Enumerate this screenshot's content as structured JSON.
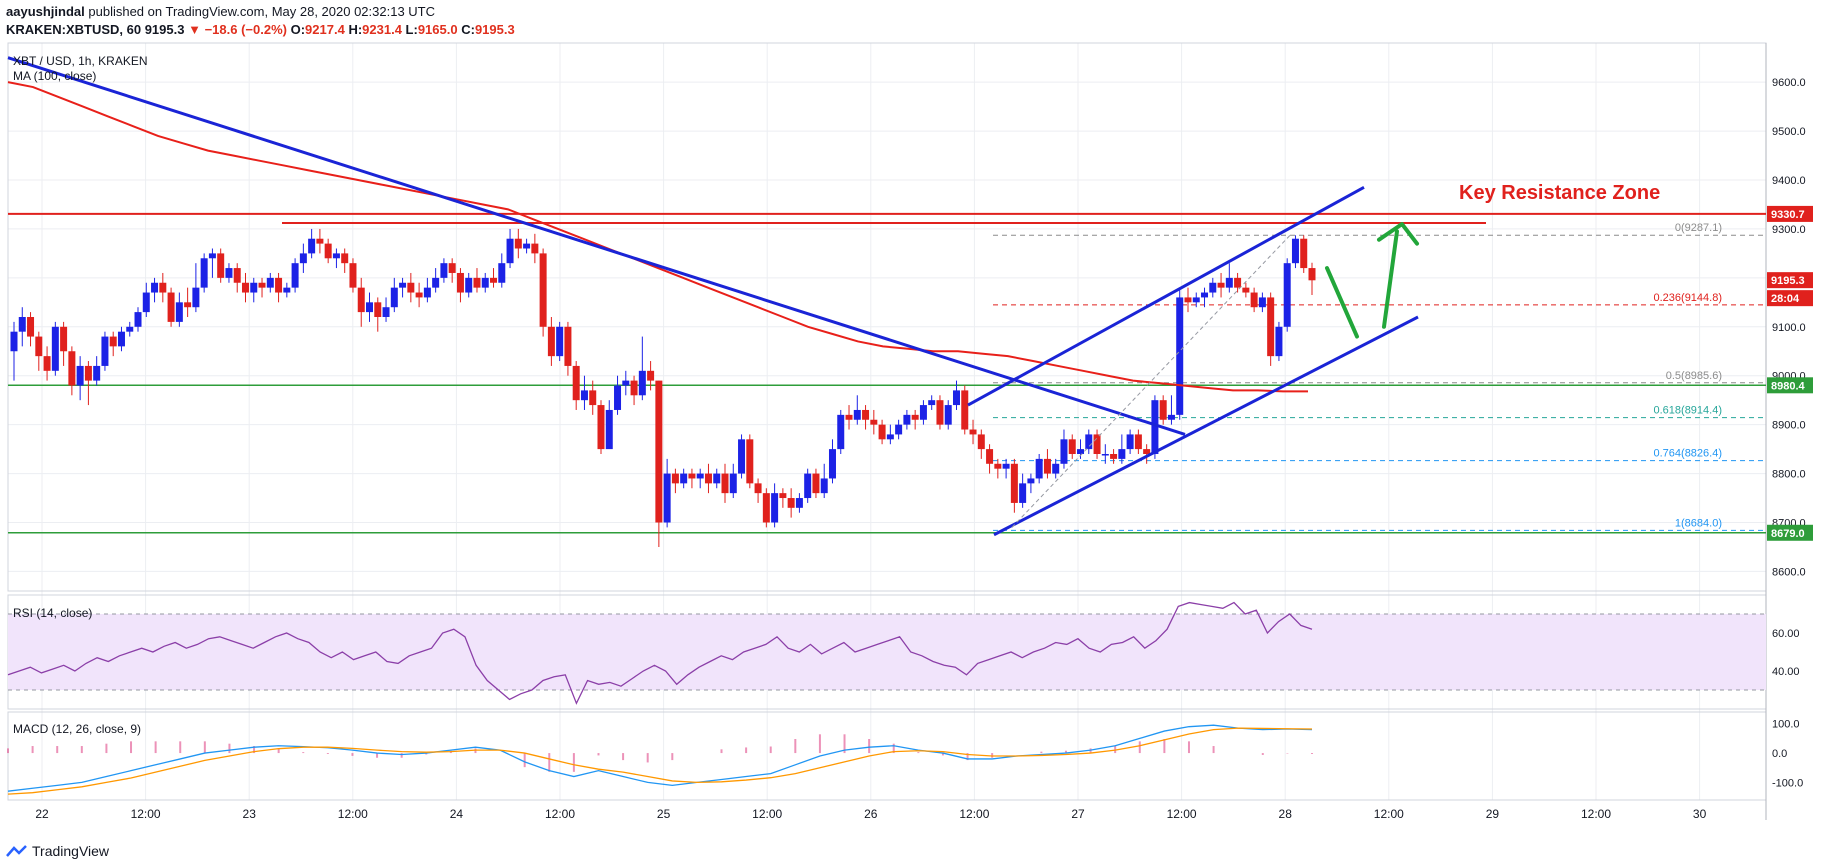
{
  "header": {
    "author": "aayushjindal",
    "published": "published on TradingView.com, May 28, 2020 02:32:13 UTC",
    "symbol": "KRAKEN:XBTUSD, 60",
    "price": "9195.3",
    "change": "▼ −18.6 (−0.2%)",
    "o_label": "O:",
    "o": "9217.4",
    "h_label": "H:",
    "h": "9231.4",
    "l_label": "L:",
    "l": "9165.0",
    "c_label": "C:",
    "c": "9195.3"
  },
  "legend": {
    "title": "XBT / USD, 1h, KRAKEN",
    "ma": "MA (100, close)",
    "rsi": "RSI (14, close)",
    "macd": "MACD (12, 26, close, 9)"
  },
  "footer": {
    "brand": "TradingView"
  },
  "colors": {
    "up": "#1c22e6",
    "down": "#e0211d",
    "ma": "#e8201a",
    "trend": "#1a24d6",
    "support": "#2e9d3a",
    "resistance": "#e0211d",
    "rsi": "#8b3fa8",
    "rsi_band": "#f1e4fb",
    "macd": "#2196f3",
    "signal": "#ff9800",
    "hist": "#e04a8a",
    "arrow": "#22a63a"
  },
  "annotation": "Key Resistance Zone",
  "chart_data": {
    "type": "candlestick",
    "title": "XBT / USD, 1h, KRAKEN",
    "ylim": [
      8560,
      9680
    ],
    "y_ticks": [
      "9600.0",
      "9500.0",
      "9400.0",
      "9300.0",
      "9200.0",
      "9100.0",
      "9000.0",
      "8900.0",
      "8800.0",
      "8700.0",
      "8600.0"
    ],
    "x_ticks": [
      "22",
      "12:00",
      "23",
      "12:00",
      "24",
      "12:00",
      "25",
      "12:00",
      "26",
      "12:00",
      "27",
      "12:00",
      "28",
      "12:00",
      "29",
      "12:00",
      "30"
    ],
    "price_labels": [
      {
        "text": "9330.7",
        "value": 9330.7,
        "color": "#e0211d"
      },
      {
        "text": "9195.3",
        "value": 9195.3,
        "color": "#e0211d"
      },
      {
        "text": "28:04",
        "value": 9150,
        "color": "#e0211d"
      },
      {
        "text": "8980.4",
        "value": 8980.4,
        "color": "#2e9d3a"
      },
      {
        "text": "8679.0",
        "value": 8679.0,
        "color": "#2e9d3a"
      }
    ],
    "horizontal_levels": [
      {
        "name": "resistance",
        "value": 9330.7
      },
      {
        "name": "resistance-2",
        "value": 9312
      },
      {
        "name": "support-upper",
        "value": 8980.4
      },
      {
        "name": "support-lower",
        "value": 8679.0
      }
    ],
    "fibonacci": [
      {
        "label": "0(9287.1)",
        "value": 9287.1,
        "color": "#8c8c8c"
      },
      {
        "label": "0.236(9144.8)",
        "value": 9144.8,
        "color": "#e0211d"
      },
      {
        "label": "0.5(8985.6)",
        "value": 8985.6,
        "color": "#8c8c8c"
      },
      {
        "label": "0.618(8914.4)",
        "value": 8914.4,
        "color": "#26a69a"
      },
      {
        "label": "0.764(8826.4)",
        "value": 8826.4,
        "color": "#2196f3"
      },
      {
        "label": "1(8684.0)",
        "value": 8684.0,
        "color": "#2196f3"
      }
    ],
    "candles": [
      [
        9050,
        9090,
        8990,
        9110
      ],
      [
        9090,
        9120,
        9060,
        9140
      ],
      [
        9120,
        9080,
        9060,
        9130
      ],
      [
        9080,
        9040,
        9010,
        9090
      ],
      [
        9040,
        9010,
        8990,
        9060
      ],
      [
        9010,
        9100,
        9000,
        9110
      ],
      [
        9100,
        9050,
        9020,
        9110
      ],
      [
        9050,
        8980,
        8960,
        9060
      ],
      [
        8980,
        9020,
        8950,
        9040
      ],
      [
        9020,
        8990,
        8940,
        9030
      ],
      [
        8990,
        9020,
        8980,
        9040
      ],
      [
        9020,
        9080,
        9010,
        9090
      ],
      [
        9080,
        9060,
        9040,
        9090
      ],
      [
        9060,
        9090,
        9050,
        9100
      ],
      [
        9090,
        9100,
        9080,
        9110
      ],
      [
        9100,
        9130,
        9090,
        9140
      ],
      [
        9130,
        9170,
        9120,
        9190
      ],
      [
        9170,
        9190,
        9150,
        9200
      ],
      [
        9190,
        9170,
        9150,
        9210
      ],
      [
        9170,
        9110,
        9100,
        9180
      ],
      [
        9110,
        9150,
        9100,
        9170
      ],
      [
        9150,
        9140,
        9120,
        9180
      ],
      [
        9140,
        9180,
        9130,
        9230
      ],
      [
        9180,
        9240,
        9170,
        9250
      ],
      [
        9240,
        9250,
        9200,
        9260
      ],
      [
        9250,
        9200,
        9190,
        9260
      ],
      [
        9200,
        9220,
        9190,
        9230
      ],
      [
        9220,
        9190,
        9170,
        9230
      ],
      [
        9190,
        9170,
        9150,
        9210
      ],
      [
        9170,
        9190,
        9150,
        9200
      ],
      [
        9190,
        9180,
        9160,
        9200
      ],
      [
        9180,
        9200,
        9170,
        9210
      ],
      [
        9200,
        9170,
        9150,
        9210
      ],
      [
        9170,
        9180,
        9160,
        9190
      ],
      [
        9180,
        9230,
        9170,
        9240
      ],
      [
        9230,
        9250,
        9210,
        9270
      ],
      [
        9250,
        9280,
        9240,
        9300
      ],
      [
        9280,
        9270,
        9250,
        9300
      ],
      [
        9270,
        9240,
        9230,
        9280
      ],
      [
        9240,
        9250,
        9220,
        9260
      ],
      [
        9250,
        9230,
        9210,
        9260
      ],
      [
        9230,
        9180,
        9170,
        9240
      ],
      [
        9180,
        9130,
        9100,
        9200
      ],
      [
        9130,
        9150,
        9110,
        9170
      ],
      [
        9150,
        9120,
        9090,
        9160
      ],
      [
        9120,
        9140,
        9110,
        9160
      ],
      [
        9140,
        9180,
        9130,
        9200
      ],
      [
        9180,
        9190,
        9160,
        9200
      ],
      [
        9190,
        9170,
        9150,
        9210
      ],
      [
        9170,
        9160,
        9140,
        9190
      ],
      [
        9160,
        9180,
        9150,
        9200
      ],
      [
        9180,
        9200,
        9170,
        9220
      ],
      [
        9200,
        9230,
        9190,
        9240
      ],
      [
        9230,
        9210,
        9190,
        9240
      ],
      [
        9210,
        9170,
        9150,
        9220
      ],
      [
        9170,
        9200,
        9160,
        9210
      ],
      [
        9200,
        9180,
        9170,
        9220
      ],
      [
        9180,
        9200,
        9170,
        9210
      ],
      [
        9200,
        9190,
        9180,
        9220
      ],
      [
        9190,
        9230,
        9180,
        9250
      ],
      [
        9230,
        9280,
        9220,
        9300
      ],
      [
        9280,
        9260,
        9240,
        9300
      ],
      [
        9260,
        9270,
        9250,
        9280
      ],
      [
        9270,
        9250,
        9230,
        9290
      ],
      [
        9250,
        9100,
        9080,
        9260
      ],
      [
        9100,
        9040,
        9020,
        9120
      ],
      [
        9040,
        9100,
        9030,
        9110
      ],
      [
        9100,
        9020,
        9000,
        9110
      ],
      [
        9020,
        8950,
        8930,
        9030
      ],
      [
        8950,
        8970,
        8930,
        9000
      ],
      [
        8970,
        8940,
        8920,
        8990
      ],
      [
        8940,
        8850,
        8840,
        8950
      ],
      [
        8850,
        8930,
        8860,
        8950
      ],
      [
        8930,
        8980,
        8920,
        9000
      ],
      [
        8980,
        8990,
        8960,
        9010
      ],
      [
        8990,
        8960,
        8940,
        9000
      ],
      [
        8960,
        9010,
        8950,
        9080
      ],
      [
        9010,
        8990,
        8970,
        9030
      ],
      [
        8990,
        8700,
        8650,
        8990
      ],
      [
        8700,
        8800,
        8690,
        8830
      ],
      [
        8800,
        8780,
        8760,
        8810
      ],
      [
        8780,
        8800,
        8770,
        8810
      ],
      [
        8800,
        8790,
        8770,
        8810
      ],
      [
        8790,
        8800,
        8770,
        8810
      ],
      [
        8800,
        8780,
        8760,
        8820
      ],
      [
        8780,
        8800,
        8770,
        8810
      ],
      [
        8800,
        8760,
        8740,
        8820
      ],
      [
        8760,
        8800,
        8750,
        8820
      ],
      [
        8800,
        8870,
        8790,
        8880
      ],
      [
        8870,
        8780,
        8770,
        8880
      ],
      [
        8780,
        8760,
        8740,
        8790
      ],
      [
        8760,
        8700,
        8690,
        8770
      ],
      [
        8700,
        8760,
        8690,
        8780
      ],
      [
        8760,
        8750,
        8730,
        8770
      ],
      [
        8750,
        8730,
        8710,
        8770
      ],
      [
        8730,
        8750,
        8720,
        8760
      ],
      [
        8750,
        8800,
        8740,
        8810
      ],
      [
        8800,
        8760,
        8750,
        8810
      ],
      [
        8760,
        8790,
        8750,
        8820
      ],
      [
        8790,
        8850,
        8780,
        8870
      ],
      [
        8850,
        8920,
        8840,
        8930
      ],
      [
        8920,
        8910,
        8890,
        8940
      ],
      [
        8910,
        8930,
        8900,
        8960
      ],
      [
        8930,
        8910,
        8890,
        8940
      ],
      [
        8910,
        8900,
        8880,
        8930
      ],
      [
        8900,
        8870,
        8860,
        8910
      ],
      [
        8870,
        8880,
        8860,
        8900
      ],
      [
        8880,
        8900,
        8870,
        8910
      ],
      [
        8900,
        8920,
        8890,
        8930
      ],
      [
        8920,
        8910,
        8890,
        8930
      ],
      [
        8910,
        8940,
        8900,
        8950
      ],
      [
        8940,
        8950,
        8930,
        8960
      ],
      [
        8950,
        8900,
        8890,
        8960
      ],
      [
        8900,
        8940,
        8890,
        8950
      ],
      [
        8940,
        8970,
        8930,
        8990
      ],
      [
        8970,
        8890,
        8880,
        8980
      ],
      [
        8890,
        8880,
        8860,
        8910
      ],
      [
        8880,
        8850,
        8830,
        8890
      ],
      [
        8850,
        8820,
        8800,
        8860
      ],
      [
        8820,
        8810,
        8790,
        8830
      ],
      [
        8810,
        8820,
        8790,
        8830
      ],
      [
        8820,
        8740,
        8720,
        8830
      ],
      [
        8740,
        8780,
        8730,
        8800
      ],
      [
        8780,
        8790,
        8760,
        8800
      ],
      [
        8790,
        8830,
        8780,
        8840
      ],
      [
        8830,
        8800,
        8790,
        8850
      ],
      [
        8800,
        8820,
        8790,
        8830
      ],
      [
        8820,
        8870,
        8810,
        8890
      ],
      [
        8870,
        8840,
        8830,
        8880
      ],
      [
        8840,
        8850,
        8830,
        8870
      ],
      [
        8850,
        8880,
        8840,
        8890
      ],
      [
        8880,
        8840,
        8830,
        8890
      ],
      [
        8840,
        8840,
        8820,
        8860
      ],
      [
        8840,
        8830,
        8820,
        8850
      ],
      [
        8830,
        8850,
        8820,
        8880
      ],
      [
        8850,
        8880,
        8840,
        8890
      ],
      [
        8880,
        8850,
        8840,
        8890
      ],
      [
        8850,
        8840,
        8820,
        8860
      ],
      [
        8840,
        8950,
        8830,
        8960
      ],
      [
        8950,
        8910,
        8900,
        8960
      ],
      [
        8910,
        8920,
        8900,
        8960
      ],
      [
        8920,
        9160,
        8910,
        9180
      ],
      [
        9160,
        9150,
        9130,
        9180
      ],
      [
        9150,
        9160,
        9140,
        9170
      ],
      [
        9160,
        9170,
        9140,
        9180
      ],
      [
        9170,
        9190,
        9160,
        9200
      ],
      [
        9190,
        9180,
        9160,
        9210
      ],
      [
        9180,
        9200,
        9170,
        9230
      ],
      [
        9200,
        9180,
        9170,
        9210
      ],
      [
        9180,
        9170,
        9160,
        9190
      ],
      [
        9170,
        9140,
        9130,
        9180
      ],
      [
        9140,
        9160,
        9130,
        9170
      ],
      [
        9160,
        9040,
        9020,
        9170
      ],
      [
        9040,
        9100,
        9030,
        9110
      ],
      [
        9100,
        9230,
        9090,
        9240
      ],
      [
        9230,
        9280,
        9220,
        9287
      ],
      [
        9280,
        9220,
        9210,
        9287
      ],
      [
        9220,
        9195,
        9165,
        9231
      ]
    ],
    "ma100": [
      9600,
      9590,
      9570,
      9550,
      9530,
      9510,
      9490,
      9475,
      9460,
      9450,
      9440,
      9430,
      9420,
      9410,
      9400,
      9390,
      9380,
      9370,
      9360,
      9350,
      9340,
      9320,
      9300,
      9280,
      9260,
      9240,
      9220,
      9200,
      9180,
      9160,
      9140,
      9120,
      9100,
      9085,
      9070,
      9060,
      9055,
      9050,
      9050,
      9045,
      9040,
      9030,
      9020,
      9010,
      9000,
      8990,
      8985,
      8980,
      8975,
      8970,
      8970,
      8968,
      8968
    ],
    "rsi": {
      "ylim": [
        20,
        80
      ],
      "bands": [
        70,
        30
      ],
      "ticks": [
        "60.00",
        "40.00"
      ],
      "values": [
        38,
        40,
        42,
        39,
        41,
        43,
        40,
        44,
        47,
        45,
        48,
        50,
        52,
        50,
        53,
        55,
        52,
        54,
        57,
        58,
        56,
        54,
        52,
        55,
        58,
        60,
        57,
        55,
        50,
        47,
        50,
        46,
        48,
        50,
        45,
        44,
        48,
        50,
        52,
        60,
        62,
        58,
        43,
        35,
        30,
        25,
        28,
        30,
        35,
        37,
        38,
        23,
        35,
        33,
        34,
        32,
        36,
        40,
        43,
        40,
        33,
        38,
        42,
        45,
        48,
        46,
        50,
        52,
        54,
        58,
        52,
        50,
        54,
        49,
        52,
        55,
        50,
        52,
        54,
        56,
        58,
        50,
        48,
        45,
        43,
        42,
        38,
        44,
        46,
        48,
        50,
        47,
        50,
        52,
        55,
        54,
        57,
        52,
        50,
        54,
        55,
        58,
        52,
        56,
        62,
        74,
        76,
        75,
        74,
        73,
        76,
        70,
        72,
        60,
        66,
        70,
        64,
        62
      ],
      "ylabel_visible": false
    },
    "macd": {
      "ylim": [
        -160,
        140
      ],
      "ticks": [
        "100.0",
        "0.0",
        "-100.0"
      ],
      "macd": [
        -130,
        -120,
        -110,
        -100,
        -80,
        -60,
        -40,
        -20,
        0,
        10,
        20,
        25,
        22,
        18,
        10,
        0,
        -5,
        0,
        10,
        20,
        10,
        -30,
        -60,
        -80,
        -60,
        -80,
        -100,
        -110,
        -100,
        -90,
        -80,
        -70,
        -40,
        -10,
        10,
        20,
        25,
        10,
        0,
        -20,
        -20,
        -10,
        -5,
        0,
        10,
        25,
        50,
        75,
        90,
        95,
        85,
        80,
        82,
        80
      ],
      "signal": [
        -140,
        -135,
        -125,
        -115,
        -100,
        -85,
        -65,
        -45,
        -25,
        -10,
        5,
        15,
        20,
        20,
        16,
        10,
        5,
        3,
        5,
        10,
        10,
        0,
        -20,
        -40,
        -55,
        -65,
        -80,
        -95,
        -100,
        -98,
        -92,
        -84,
        -70,
        -50,
        -30,
        -10,
        5,
        8,
        5,
        -5,
        -10,
        -10,
        -8,
        -5,
        0,
        10,
        25,
        45,
        65,
        80,
        85,
        84,
        83,
        82
      ]
    }
  }
}
